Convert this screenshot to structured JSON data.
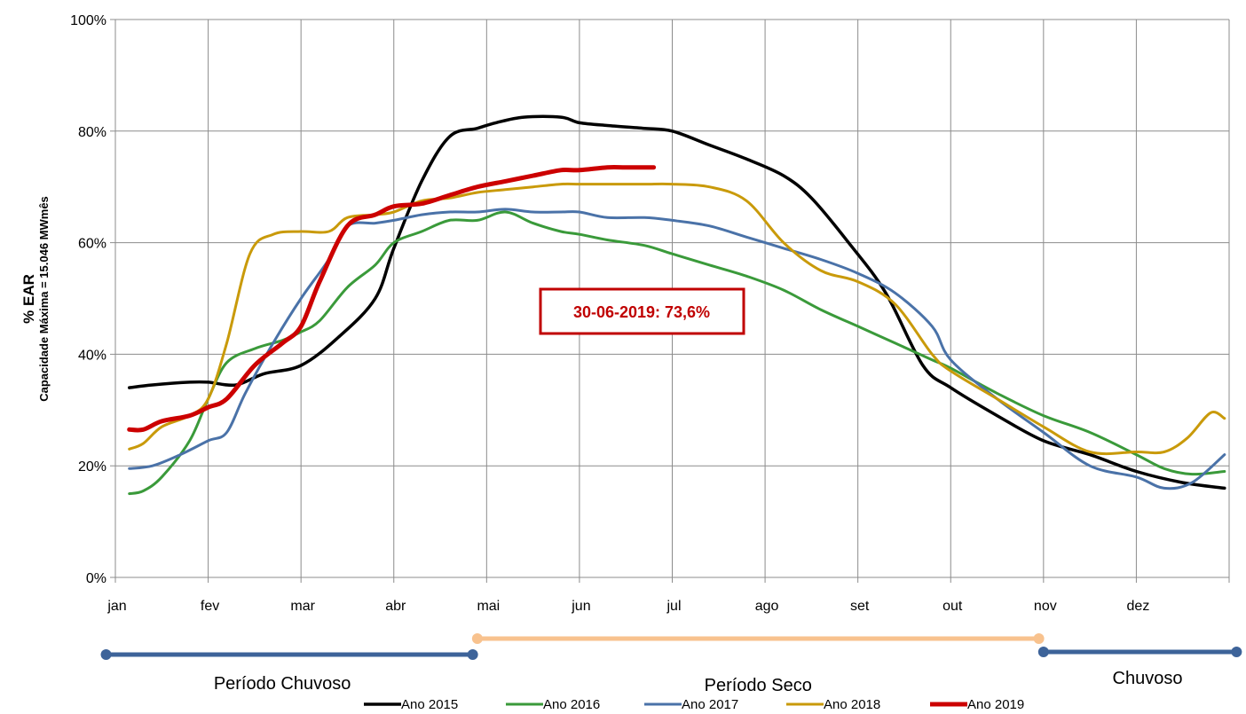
{
  "chart_data": {
    "type": "line",
    "ylabel": "% EAR",
    "ylabel_sub": "Capacidade Máxima = 15.046 MWmês",
    "categories": [
      "jan",
      "fev",
      "mar",
      "abr",
      "mai",
      "jun",
      "jul",
      "ago",
      "set",
      "out",
      "nov",
      "dez"
    ],
    "yticks": [
      "0%",
      "20%",
      "40%",
      "60%",
      "80%",
      "100%"
    ],
    "ylim": [
      0,
      100
    ],
    "xlim": [
      0,
      12
    ],
    "grid": true,
    "legend_position": "bottom",
    "series": [
      {
        "name": "Ano 2015",
        "color": "#000000",
        "width": 3.5,
        "x": [
          0.15,
          0.4,
          0.8,
          1.0,
          1.3,
          1.6,
          2.0,
          2.4,
          2.8,
          3.0,
          3.3,
          3.6,
          3.9,
          4.1,
          4.4,
          4.8,
          5.0,
          5.3,
          5.7,
          6.0,
          6.4,
          6.8,
          7.2,
          7.5,
          7.9,
          8.3,
          8.7,
          9.0,
          9.5,
          10.0,
          10.5,
          11.0,
          11.5,
          11.95
        ],
        "y": [
          34,
          34.5,
          35,
          35,
          34.5,
          36.5,
          38,
          43,
          50,
          59,
          71,
          79,
          80.5,
          81.5,
          82.5,
          82.5,
          81.5,
          81,
          80.5,
          80,
          77.5,
          75,
          72,
          68,
          60,
          51,
          38,
          34,
          29,
          24.5,
          22,
          19,
          17,
          16
        ]
      },
      {
        "name": "Ano 2016",
        "color": "#3a9a3a",
        "width": 3,
        "x": [
          0.15,
          0.3,
          0.5,
          0.8,
          1.0,
          1.2,
          1.5,
          1.8,
          2.0,
          2.2,
          2.5,
          2.8,
          3.0,
          3.3,
          3.6,
          3.9,
          4.2,
          4.5,
          4.8,
          5.0,
          5.3,
          5.7,
          6.0,
          6.4,
          6.8,
          7.2,
          7.6,
          8.0,
          8.4,
          8.8,
          9.0,
          9.5,
          10.0,
          10.5,
          11.0,
          11.3,
          11.6,
          11.95
        ],
        "y": [
          15,
          15.5,
          18,
          24.5,
          32,
          38.5,
          41,
          42.5,
          44,
          46,
          52,
          56,
          60,
          62,
          64,
          64,
          65.5,
          63.5,
          62,
          61.5,
          60.5,
          59.5,
          58,
          56,
          54,
          51.5,
          48,
          45,
          42,
          39,
          37.5,
          33,
          29,
          26,
          22,
          19.5,
          18.5,
          19
        ]
      },
      {
        "name": "Ano 2017",
        "color": "#4a72a8",
        "width": 3,
        "x": [
          0.15,
          0.4,
          0.7,
          1.0,
          1.2,
          1.4,
          1.7,
          2.0,
          2.3,
          2.5,
          2.8,
          3.0,
          3.3,
          3.6,
          3.9,
          4.2,
          4.5,
          4.8,
          5.0,
          5.3,
          5.7,
          6.0,
          6.4,
          6.8,
          7.2,
          7.6,
          8.0,
          8.4,
          8.8,
          9.0,
          9.5,
          10.0,
          10.5,
          11.0,
          11.3,
          11.6,
          11.95
        ],
        "y": [
          19.5,
          20,
          22,
          24.5,
          26,
          33,
          42,
          50,
          57,
          63,
          63.5,
          64,
          65,
          65.5,
          65.5,
          66,
          65.5,
          65.5,
          65.5,
          64.5,
          64.5,
          64,
          63,
          61,
          59,
          57,
          54.5,
          51,
          45,
          39,
          32,
          26,
          20,
          18,
          16,
          17,
          22
        ]
      },
      {
        "name": "Ano 2018",
        "color": "#c99a0a",
        "width": 3,
        "x": [
          0.15,
          0.3,
          0.5,
          0.8,
          1.0,
          1.2,
          1.45,
          1.7,
          2.0,
          2.3,
          2.5,
          2.8,
          3.0,
          3.3,
          3.6,
          3.9,
          4.2,
          4.5,
          4.8,
          5.0,
          5.3,
          5.7,
          6.0,
          6.4,
          6.8,
          7.2,
          7.6,
          8.0,
          8.4,
          8.8,
          9.0,
          9.5,
          10.0,
          10.5,
          11.0,
          11.3,
          11.55,
          11.8,
          11.95
        ],
        "y": [
          23,
          24,
          27,
          29,
          32,
          42,
          58,
          61.5,
          62,
          62,
          64.5,
          65,
          65.5,
          67.5,
          68,
          69,
          69.5,
          70,
          70.5,
          70.5,
          70.5,
          70.5,
          70.5,
          70,
          67.5,
          60,
          55,
          53,
          49,
          40,
          37,
          32,
          27,
          22.5,
          22.5,
          22.5,
          25,
          29.5,
          28.5
        ]
      },
      {
        "name": "Ano 2019",
        "color": "#cc0000",
        "width": 5,
        "x": [
          0.15,
          0.3,
          0.5,
          0.8,
          1.0,
          1.2,
          1.5,
          1.8,
          2.0,
          2.2,
          2.5,
          2.8,
          3.0,
          3.3,
          3.6,
          3.9,
          4.2,
          4.5,
          4.8,
          5.0,
          5.3,
          5.5,
          5.8
        ],
        "y": [
          26.5,
          26.5,
          28,
          29,
          30.5,
          32,
          38,
          42,
          45,
          53,
          63,
          65,
          66.5,
          67,
          68.5,
          70,
          71,
          72,
          73,
          73,
          73.5,
          73.5,
          73.5
        ]
      }
    ],
    "annotation": {
      "text": "30-06-2019: 73,6%",
      "x": 5.8,
      "y": 73.6
    },
    "periods": [
      {
        "label": "Período Chuvoso",
        "color": "#3d6399",
        "x_start": -0.1,
        "x_end": 3.85
      },
      {
        "label": "Período Seco",
        "color": "#f8c28e",
        "x_start": 3.9,
        "x_end": 9.95
      },
      {
        "label": "Chuvoso",
        "color": "#3d6399",
        "x_start": 10.0,
        "x_end": 12.08
      }
    ]
  }
}
